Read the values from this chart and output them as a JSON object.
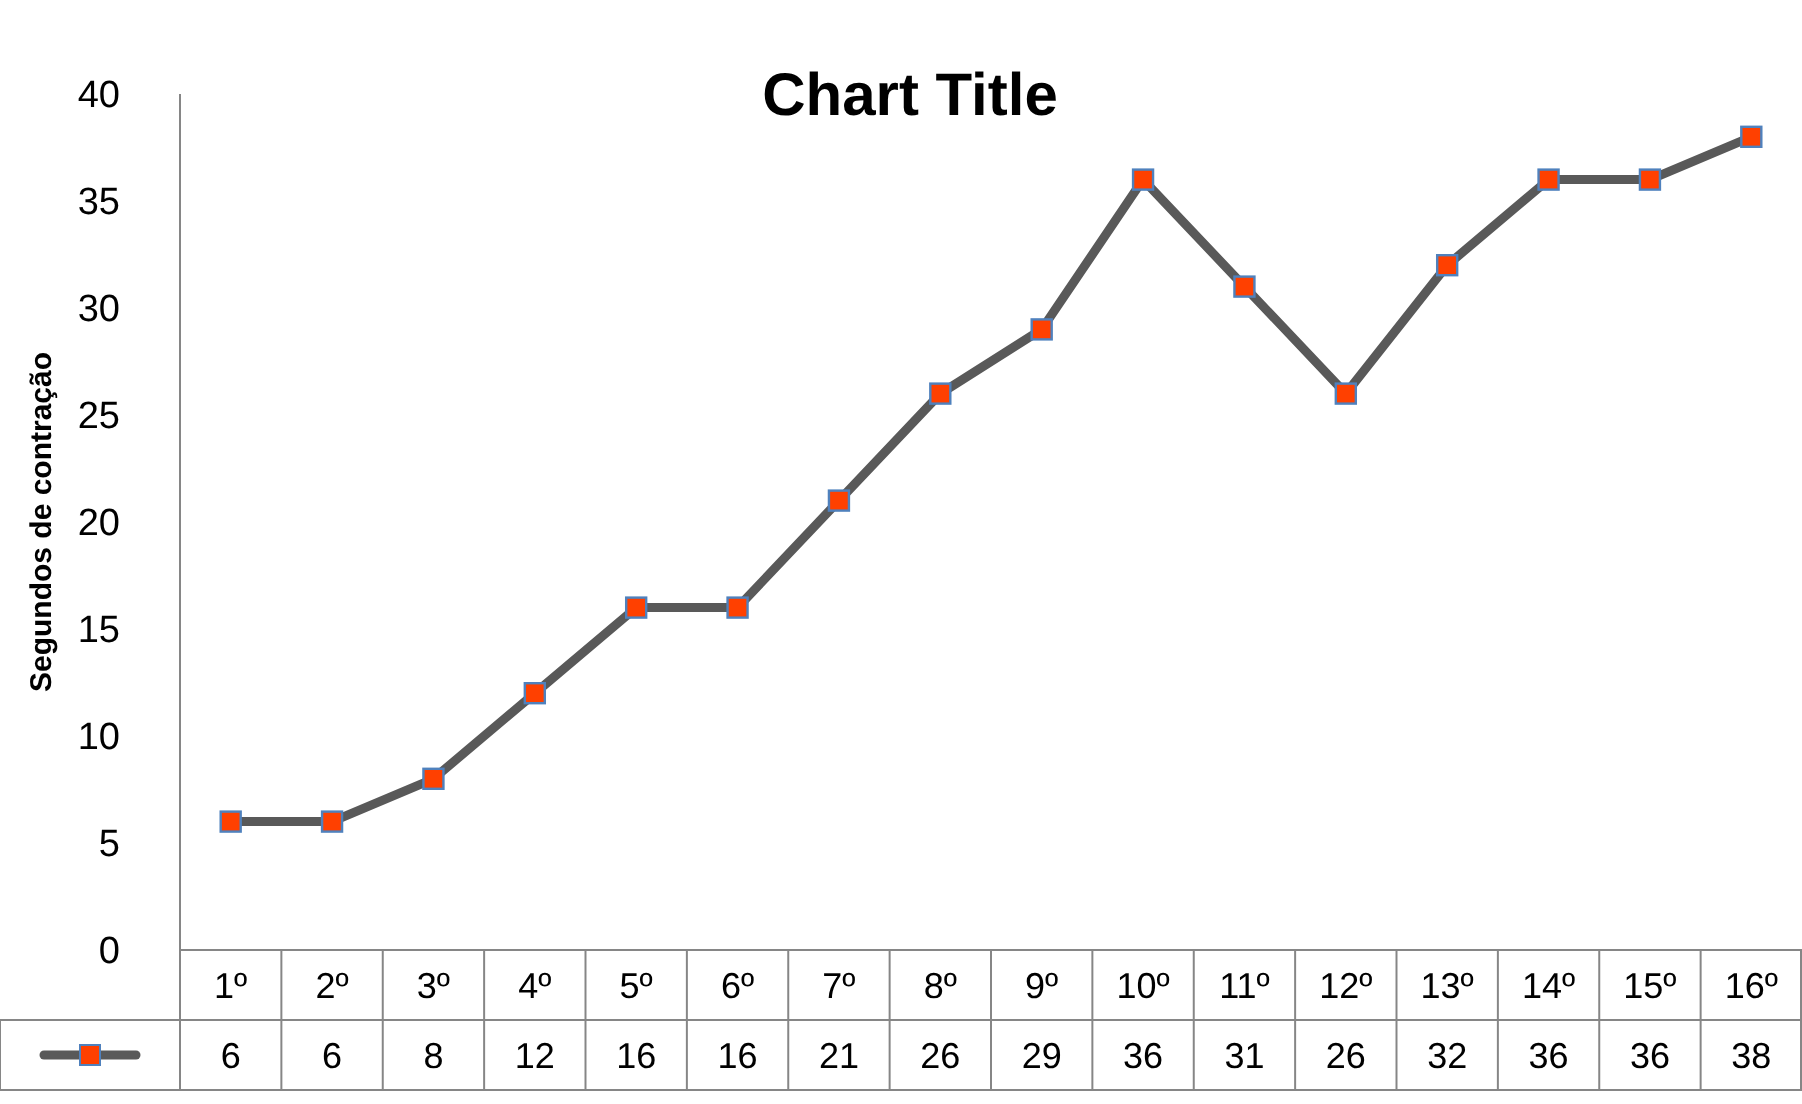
{
  "chart_data": {
    "type": "line",
    "title": "Chart Title",
    "ylabel": "Segundos de contração",
    "categories": [
      "1º",
      "2º",
      "3º",
      "4º",
      "5º",
      "6º",
      "7º",
      "8º",
      "9º",
      "10º",
      "11º",
      "12º",
      "13º",
      "14º",
      "15º",
      "16º"
    ],
    "series": [
      {
        "color": "#595959",
        "colors": [
          "#ff4000",
          "#ff4000",
          "#ff4000",
          "#ff4000",
          "#ff4000",
          "#ff4000",
          "#ff4000",
          "#ff4000",
          "#ff4000",
          "#ff4000",
          "#ff4000",
          "#ff4000",
          "#ff4000",
          "#ff4000",
          "#ff4000",
          "#ff4000"
        ],
        "values": [
          6,
          6,
          8,
          12,
          16,
          16,
          21,
          26,
          29,
          36,
          31,
          26,
          32,
          36,
          36,
          38
        ]
      }
    ],
    "ylim": [
      0,
      40
    ],
    "yticks": [
      0,
      5,
      10,
      15,
      20,
      25,
      30,
      35,
      40
    ],
    "marker": "square",
    "data_labels": true,
    "grid": false
  }
}
